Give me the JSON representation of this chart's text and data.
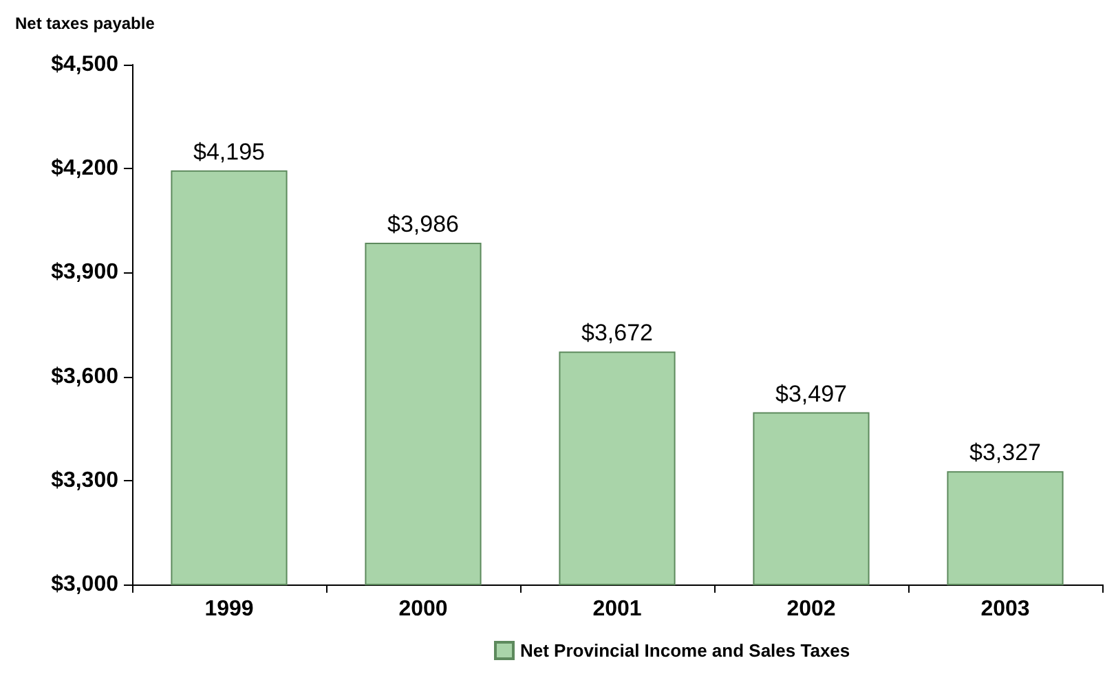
{
  "chart_data": {
    "type": "bar",
    "ylabel": "Net taxes payable",
    "categories": [
      "1999",
      "2000",
      "2001",
      "2002",
      "2003"
    ],
    "series": [
      {
        "name": "Net Provincial Income and Sales Taxes",
        "color": "#a9d4a9",
        "values": [
          4195,
          3986,
          3672,
          3497,
          3327
        ],
        "value_labels": [
          "$4,195",
          "$3,986",
          "$3,672",
          "$3,497",
          "$3,327"
        ]
      }
    ],
    "ylim": [
      3000,
      4500
    ],
    "yticks": [
      {
        "value": 3000,
        "label": "$3,000"
      },
      {
        "value": 3300,
        "label": "$3,300"
      },
      {
        "value": 3600,
        "label": "$3,600"
      },
      {
        "value": 3900,
        "label": "$3,900"
      },
      {
        "value": 4200,
        "label": "$4,200"
      },
      {
        "value": 4500,
        "label": "$4,500"
      }
    ],
    "grid": false,
    "legend": "bottom"
  }
}
